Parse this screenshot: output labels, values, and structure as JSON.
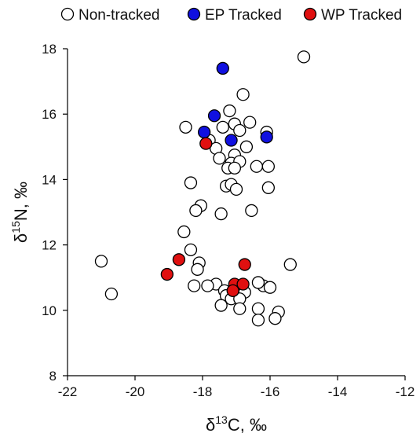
{
  "chart_data": {
    "type": "scatter",
    "xlabel": {
      "symbol": "δ",
      "sup": "13",
      "rest": "C, ‰"
    },
    "ylabel": {
      "symbol": "δ",
      "sup": "15",
      "rest": "N, ‰"
    },
    "xlim": [
      -22,
      -12
    ],
    "ylim": [
      8,
      18
    ],
    "xticks": [
      -22,
      -20,
      -18,
      -16,
      -14,
      -12
    ],
    "yticks": [
      8,
      10,
      12,
      14,
      16,
      18
    ],
    "grid": false,
    "legend_position": "top",
    "series": [
      {
        "name": "Non-tracked",
        "fill": "#ffffff",
        "stroke": "#000000",
        "points": [
          [
            -15.0,
            17.75
          ],
          [
            -16.8,
            16.6
          ],
          [
            -17.2,
            16.1
          ],
          [
            -16.6,
            15.75
          ],
          [
            -17.4,
            15.6
          ],
          [
            -17.05,
            15.7
          ],
          [
            -18.5,
            15.6
          ],
          [
            -16.9,
            15.5
          ],
          [
            -16.1,
            15.45
          ],
          [
            -17.8,
            15.2
          ],
          [
            -16.7,
            15.0
          ],
          [
            -17.6,
            14.95
          ],
          [
            -17.05,
            14.75
          ],
          [
            -17.5,
            14.65
          ],
          [
            -17.15,
            14.5
          ],
          [
            -16.9,
            14.55
          ],
          [
            -17.25,
            14.35
          ],
          [
            -17.05,
            14.35
          ],
          [
            -16.4,
            14.4
          ],
          [
            -16.05,
            14.4
          ],
          [
            -18.35,
            13.9
          ],
          [
            -17.3,
            13.8
          ],
          [
            -17.15,
            13.85
          ],
          [
            -17.0,
            13.7
          ],
          [
            -16.05,
            13.75
          ],
          [
            -18.05,
            13.2
          ],
          [
            -18.2,
            13.05
          ],
          [
            -17.45,
            12.95
          ],
          [
            -16.55,
            13.05
          ],
          [
            -18.55,
            12.4
          ],
          [
            -18.35,
            11.85
          ],
          [
            -21.0,
            11.5
          ],
          [
            -18.1,
            11.45
          ],
          [
            -18.15,
            11.25
          ],
          [
            -15.4,
            11.4
          ],
          [
            -17.6,
            10.8
          ],
          [
            -17.85,
            10.75
          ],
          [
            -18.25,
            10.75
          ],
          [
            -17.35,
            10.6
          ],
          [
            -16.95,
            10.65
          ],
          [
            -16.2,
            10.75
          ],
          [
            -16.35,
            10.85
          ],
          [
            -16.0,
            10.7
          ],
          [
            -17.0,
            10.5
          ],
          [
            -16.75,
            10.55
          ],
          [
            -17.3,
            10.45
          ],
          [
            -17.15,
            10.35
          ],
          [
            -16.9,
            10.35
          ],
          [
            -17.45,
            10.15
          ],
          [
            -16.9,
            10.05
          ],
          [
            -20.7,
            10.5
          ],
          [
            -16.35,
            10.05
          ],
          [
            -15.75,
            9.95
          ],
          [
            -15.85,
            9.75
          ],
          [
            -16.35,
            9.7
          ]
        ]
      },
      {
        "name": "EP Tracked",
        "fill": "#1010e0",
        "stroke": "#000000",
        "points": [
          [
            -17.4,
            17.4
          ],
          [
            -17.65,
            15.95
          ],
          [
            -17.95,
            15.45
          ],
          [
            -17.15,
            15.2
          ],
          [
            -16.1,
            15.3
          ]
        ]
      },
      {
        "name": "WP Tracked",
        "fill": "#e01010",
        "stroke": "#000000",
        "points": [
          [
            -17.9,
            15.1
          ],
          [
            -18.7,
            11.55
          ],
          [
            -19.05,
            11.1
          ],
          [
            -16.75,
            11.4
          ],
          [
            -17.05,
            10.8
          ],
          [
            -16.8,
            10.8
          ],
          [
            -17.1,
            10.6
          ]
        ]
      }
    ]
  }
}
